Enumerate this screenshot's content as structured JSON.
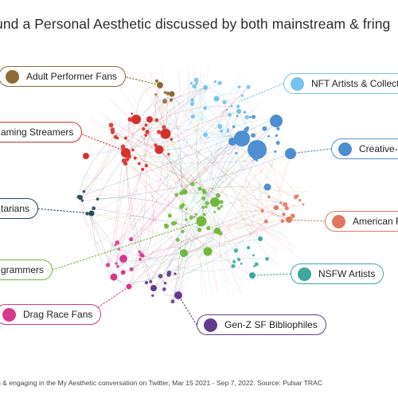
{
  "title": "und a Personal Aesthetic discussed by both mainstream & fring",
  "footer": "g & engaging in the My Aesthetic conversation on Twitter, Mar 15 2021 - Sep 7, 2022. Source: Pulsar TRAC",
  "communities": {
    "adult": {
      "label": "Adult Performer Fans",
      "color": "#8f6a35",
      "border": "#8f6a35"
    },
    "nft": {
      "label": "NFT Artists & Collect",
      "color": "#74c3ee",
      "border": "#74c3ee"
    },
    "gaming": {
      "label": "aming Streamers",
      "color": "#d7302c",
      "border": "#d7302c"
    },
    "creative": {
      "label": "Creative-r",
      "color": "#4d8fd0",
      "border": "#4d8fd0"
    },
    "tarians": {
      "label": "tarians",
      "color": "#234a5b",
      "border": "#234a5b"
    },
    "american": {
      "label": "American P",
      "color": "#e07860",
      "border": "#e07860"
    },
    "programmers": {
      "label": "grammers",
      "color": "#72b83e",
      "border": "#72b83e"
    },
    "nsfw": {
      "label": "NSFW Artists",
      "color": "#3fa79c",
      "border": "#3fa79c"
    },
    "dragrace": {
      "label": "Drag Race Fans",
      "color": "#d6388c",
      "border": "#d6388c"
    },
    "genz": {
      "label": "Gen-Z SF Bibliophiles",
      "color": "#633a8d",
      "border": "#633a8d"
    }
  }
}
